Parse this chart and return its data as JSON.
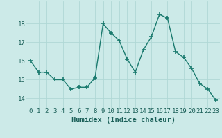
{
  "x": [
    0,
    1,
    2,
    3,
    4,
    5,
    6,
    7,
    8,
    9,
    10,
    11,
    12,
    13,
    14,
    15,
    16,
    17,
    18,
    19,
    20,
    21,
    22,
    23
  ],
  "y": [
    16.0,
    15.4,
    15.4,
    15.0,
    15.0,
    14.5,
    14.6,
    14.6,
    15.1,
    18.0,
    17.5,
    17.1,
    16.1,
    15.4,
    16.6,
    17.3,
    18.5,
    18.3,
    16.5,
    16.2,
    15.6,
    14.8,
    14.5,
    13.9
  ],
  "line_color": "#1a7a6e",
  "bg_color": "#cceae8",
  "grid_color": "#b0d8d5",
  "xlabel": "Humidex (Indice chaleur)",
  "ylim": [
    13.5,
    19.2
  ],
  "xlim": [
    -0.5,
    23.5
  ],
  "yticks": [
    14,
    15,
    16,
    17,
    18
  ],
  "xticks": [
    0,
    1,
    2,
    3,
    4,
    5,
    6,
    7,
    8,
    9,
    10,
    11,
    12,
    13,
    14,
    15,
    16,
    17,
    18,
    19,
    20,
    21,
    22,
    23
  ],
  "xtick_labels": [
    "0",
    "1",
    "2",
    "3",
    "4",
    "5",
    "6",
    "7",
    "8",
    "9",
    "10",
    "11",
    "12",
    "13",
    "14",
    "15",
    "16",
    "17",
    "18",
    "19",
    "20",
    "21",
    "22",
    "23"
  ],
  "marker": "+",
  "marker_size": 5,
  "line_width": 1.0,
  "font_color": "#1a5f58",
  "xlabel_fontsize": 7.5,
  "tick_fontsize": 6.5
}
